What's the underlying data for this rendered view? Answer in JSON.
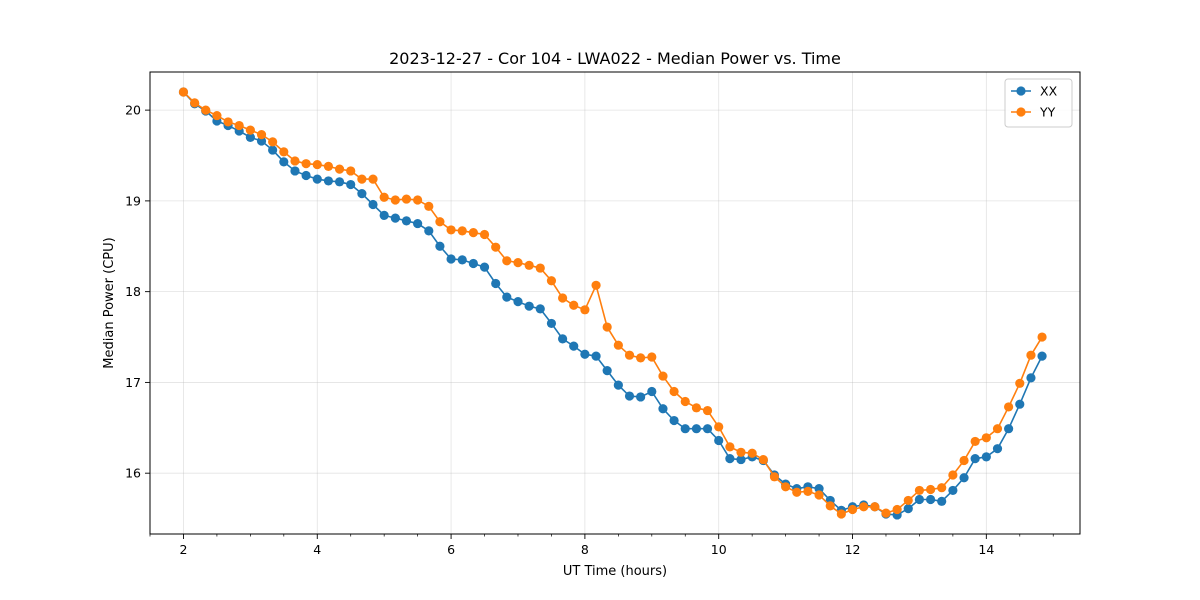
{
  "chart_data": {
    "type": "line",
    "title": "2023-12-27 - Cor 104 - LWA022 - Median Power vs. Time",
    "xlabel": "UT Time (hours)",
    "ylabel": "Median Power (CPU)",
    "xlim": [
      1.5,
      15.4
    ],
    "ylim": [
      15.33,
      20.42
    ],
    "xticks": [
      2,
      4,
      6,
      8,
      10,
      12,
      14
    ],
    "xtick_labels": [
      "2",
      "4",
      "6",
      "8",
      "10",
      "12",
      "14"
    ],
    "yticks": [
      16,
      17,
      18,
      19,
      20
    ],
    "ytick_labels": [
      "16",
      "17",
      "18",
      "19",
      "20"
    ],
    "x_minor_step": 0.5,
    "grid": true,
    "legend_position": "top-right",
    "x": [
      2.0,
      2.167,
      2.333,
      2.5,
      2.667,
      2.833,
      3.0,
      3.167,
      3.333,
      3.5,
      3.667,
      3.833,
      4.0,
      4.167,
      4.333,
      4.5,
      4.667,
      4.833,
      5.0,
      5.167,
      5.333,
      5.5,
      5.667,
      5.833,
      6.0,
      6.167,
      6.333,
      6.5,
      6.667,
      6.833,
      7.0,
      7.167,
      7.333,
      7.5,
      7.667,
      7.833,
      8.0,
      8.167,
      8.333,
      8.5,
      8.667,
      8.833,
      9.0,
      9.167,
      9.333,
      9.5,
      9.667,
      9.833,
      10.0,
      10.167,
      10.333,
      10.5,
      10.667,
      10.833,
      11.0,
      11.167,
      11.333,
      11.5,
      11.667,
      11.833,
      12.0,
      12.167,
      12.333,
      12.5,
      12.667,
      12.833,
      13.0,
      13.167,
      13.333,
      13.5,
      13.667,
      13.833,
      14.0,
      14.167,
      14.333,
      14.5,
      14.667,
      14.833
    ],
    "series": [
      {
        "name": "XX",
        "color": "#1f77b4",
        "values": [
          20.2,
          20.07,
          19.99,
          19.88,
          19.83,
          19.77,
          19.7,
          19.66,
          19.56,
          19.43,
          19.33,
          19.28,
          19.24,
          19.22,
          19.21,
          19.18,
          19.08,
          18.96,
          18.84,
          18.81,
          18.78,
          18.75,
          18.67,
          18.5,
          18.36,
          18.35,
          18.31,
          18.27,
          18.09,
          17.94,
          17.89,
          17.84,
          17.81,
          17.65,
          17.48,
          17.4,
          17.31,
          17.29,
          17.13,
          16.97,
          16.85,
          16.84,
          16.9,
          16.71,
          16.58,
          16.49,
          16.49,
          16.49,
          16.36,
          16.16,
          16.15,
          16.18,
          16.14,
          15.98,
          15.88,
          15.83,
          15.85,
          15.83,
          15.7,
          15.59,
          15.63,
          15.65,
          15.63,
          15.55,
          15.54,
          15.61,
          15.71,
          15.71,
          15.69,
          15.81,
          15.95,
          16.16,
          16.18,
          16.27,
          16.49,
          16.76,
          17.05,
          17.29
        ]
      },
      {
        "name": "YY",
        "color": "#ff7f0e",
        "values": [
          20.2,
          20.08,
          20.0,
          19.94,
          19.87,
          19.83,
          19.78,
          19.73,
          19.65,
          19.54,
          19.44,
          19.41,
          19.4,
          19.38,
          19.35,
          19.33,
          19.24,
          19.24,
          19.04,
          19.01,
          19.02,
          19.01,
          18.94,
          18.77,
          18.68,
          18.67,
          18.65,
          18.63,
          18.49,
          18.34,
          18.32,
          18.29,
          18.26,
          18.12,
          17.93,
          17.85,
          17.8,
          18.07,
          17.61,
          17.41,
          17.3,
          17.27,
          17.28,
          17.07,
          16.9,
          16.79,
          16.72,
          16.69,
          16.51,
          16.29,
          16.23,
          16.22,
          16.15,
          15.96,
          15.85,
          15.79,
          15.8,
          15.76,
          15.64,
          15.55,
          15.6,
          15.63,
          15.63,
          15.56,
          15.6,
          15.7,
          15.81,
          15.82,
          15.84,
          15.98,
          16.14,
          16.35,
          16.39,
          16.49,
          16.73,
          16.99,
          17.3,
          17.5
        ]
      }
    ]
  }
}
